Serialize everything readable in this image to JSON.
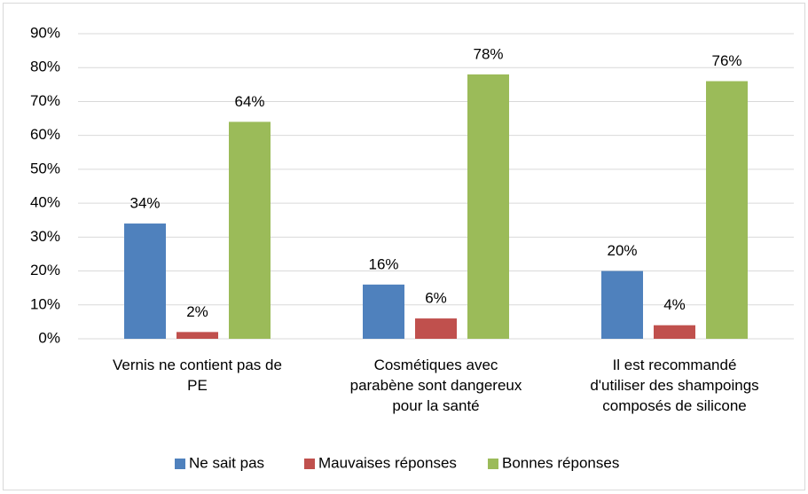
{
  "chart_data": {
    "type": "bar",
    "categories": [
      "Vernis ne contient pas de PE",
      "Cosmétiques avec parabène sont dangereux pour la santé",
      "Il est recommandé d'utiliser des shampoings composés de silicone"
    ],
    "series": [
      {
        "name": "Ne sait pas",
        "color": "#4f81bd",
        "values": [
          34,
          16,
          20
        ],
        "value_labels": [
          "34%",
          "16%",
          "20%"
        ]
      },
      {
        "name": "Mauvaises réponses",
        "color": "#c0504d",
        "values": [
          2,
          6,
          4
        ],
        "value_labels": [
          "2%",
          "6%",
          "4%"
        ]
      },
      {
        "name": "Bonnes réponses",
        "color": "#9bbb59",
        "values": [
          64,
          78,
          76
        ],
        "value_labels": [
          "64%",
          "78%",
          "76%"
        ]
      }
    ],
    "ylim": [
      0,
      90
    ],
    "yticks": [
      {
        "value": 0,
        "label": "0%"
      },
      {
        "value": 10,
        "label": "10%"
      },
      {
        "value": 20,
        "label": "20%"
      },
      {
        "value": 30,
        "label": "30%"
      },
      {
        "value": 40,
        "label": "40%"
      },
      {
        "value": 50,
        "label": "50%"
      },
      {
        "value": 60,
        "label": "60%"
      },
      {
        "value": 70,
        "label": "70%"
      },
      {
        "value": 80,
        "label": "80%"
      },
      {
        "value": 90,
        "label": "90%"
      }
    ],
    "grid": true,
    "legend": "bottom"
  }
}
